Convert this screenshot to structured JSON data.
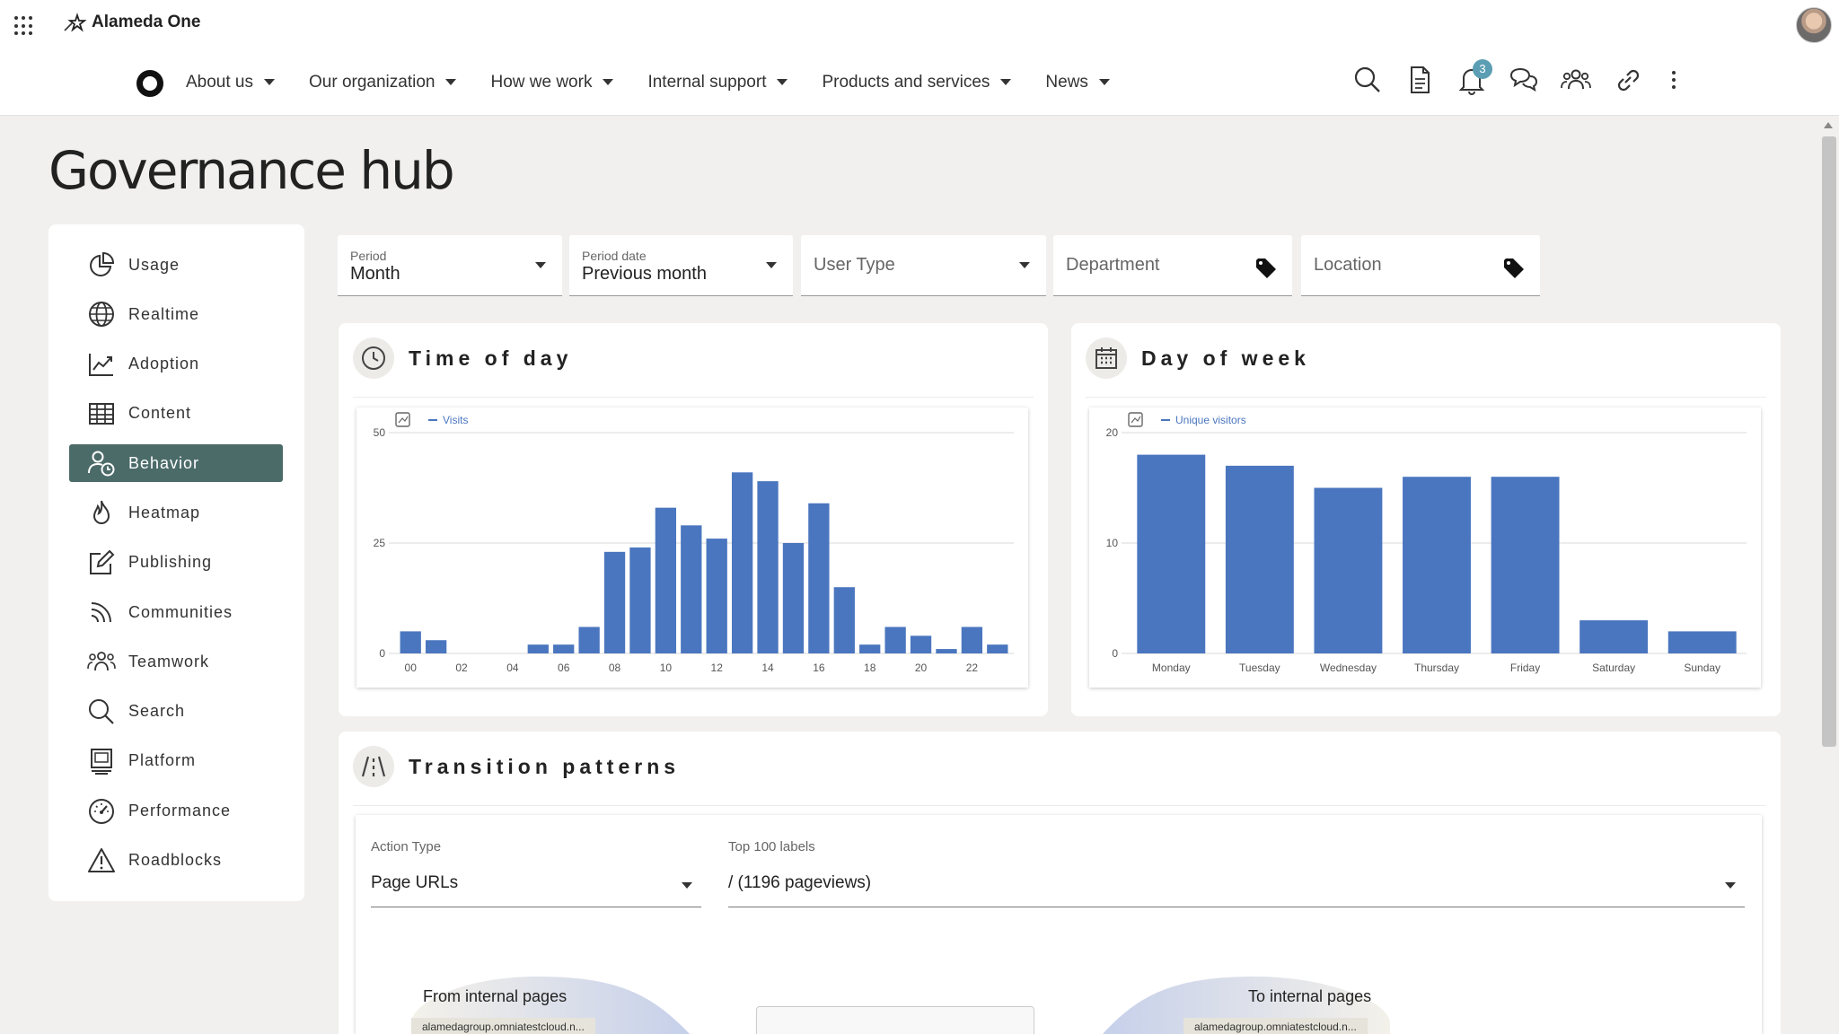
{
  "app": {
    "brand": "Alameda One"
  },
  "nav": {
    "items": [
      {
        "label": "About us"
      },
      {
        "label": "Our organization"
      },
      {
        "label": "How we work"
      },
      {
        "label": "Internal support"
      },
      {
        "label": "Products and services"
      },
      {
        "label": "News"
      }
    ],
    "notification_count": "3"
  },
  "page": {
    "title": "Governance hub"
  },
  "sidebar": {
    "items": [
      {
        "label": "Usage",
        "icon": "pie-chart-icon"
      },
      {
        "label": "Realtime",
        "icon": "globe-icon"
      },
      {
        "label": "Adoption",
        "icon": "trend-chart-icon"
      },
      {
        "label": "Content",
        "icon": "table-icon"
      },
      {
        "label": "Behavior",
        "icon": "user-clock-icon",
        "active": true
      },
      {
        "label": "Heatmap",
        "icon": "flame-icon"
      },
      {
        "label": "Publishing",
        "icon": "edit-icon"
      },
      {
        "label": "Communities",
        "icon": "rss-icon"
      },
      {
        "label": "Teamwork",
        "icon": "people-icon"
      },
      {
        "label": "Search",
        "icon": "search-icon"
      },
      {
        "label": "Platform",
        "icon": "monitor-icon"
      },
      {
        "label": "Performance",
        "icon": "gauge-icon"
      },
      {
        "label": "Roadblocks",
        "icon": "warning-icon"
      }
    ],
    "active_color": "#4b6b69"
  },
  "filters": {
    "period": {
      "label": "Period",
      "value": "Month"
    },
    "period_date": {
      "label": "Period date",
      "value": "Previous month"
    },
    "user_type": {
      "placeholder": "User Type"
    },
    "department": {
      "placeholder": "Department"
    },
    "location": {
      "placeholder": "Location"
    }
  },
  "time_of_day": {
    "title": "Time of day",
    "chart_data": {
      "type": "bar",
      "series_name": "Visits",
      "x": [
        0,
        1,
        2,
        3,
        4,
        5,
        6,
        7,
        8,
        9,
        10,
        11,
        12,
        13,
        14,
        15,
        16,
        17,
        18,
        19,
        20,
        21,
        22,
        23
      ],
      "tick_labels": [
        "00",
        "02",
        "04",
        "06",
        "08",
        "10",
        "12",
        "14",
        "16",
        "18",
        "20",
        "22"
      ],
      "values": [
        5,
        3,
        0,
        0,
        0,
        2,
        2,
        6,
        23,
        24,
        33,
        29,
        26,
        41,
        39,
        25,
        34,
        15,
        2,
        6,
        4,
        1,
        6,
        2
      ],
      "ylim": [
        0,
        50
      ],
      "yticks": [
        "0",
        "25",
        "50"
      ],
      "color": "#4a76bf"
    }
  },
  "day_of_week": {
    "title": "Day of week",
    "chart_data": {
      "type": "bar",
      "series_name": "Unique visitors",
      "categories": [
        "Monday",
        "Tuesday",
        "Wednesday",
        "Thursday",
        "Friday",
        "Saturday",
        "Sunday"
      ],
      "values": [
        18,
        17,
        15,
        16,
        16,
        3,
        2
      ],
      "ylim": [
        0,
        20
      ],
      "yticks": [
        "0",
        "10",
        "20"
      ],
      "color": "#4a76bf"
    }
  },
  "transition": {
    "title": "Transition patterns",
    "action_type": {
      "label": "Action Type",
      "value": "Page URLs"
    },
    "top_labels": {
      "label": "Top 100 labels",
      "value": "/ (1196 pageviews)"
    },
    "from": {
      "title": "From internal pages",
      "item": "alamedagroup.omniatestcloud.n..."
    },
    "to": {
      "title": "To internal pages",
      "item": "alamedagroup.omniatestcloud.n..."
    }
  }
}
